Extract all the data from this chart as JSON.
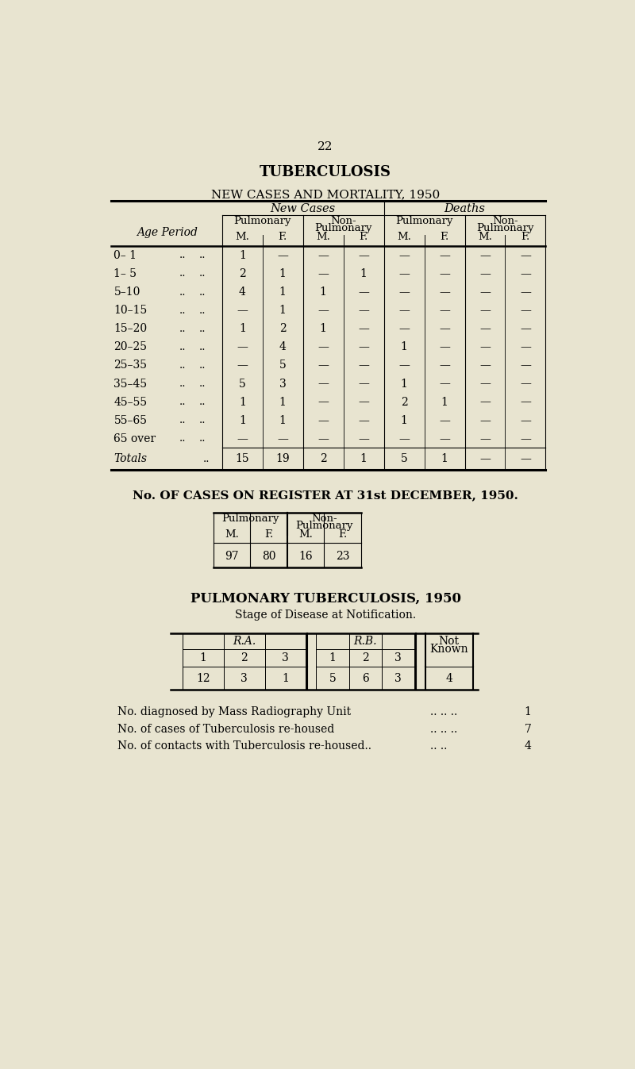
{
  "bg_color": "#e8e4d0",
  "page_number": "22",
  "title1": "TUBERCULOSIS",
  "title2": "NEW CASES AND MORTALITY, 1950",
  "table1": {
    "age_periods": [
      "0– 1",
      "1– 5",
      "5–10",
      "10–15",
      "15–20",
      "20–25",
      "25–35",
      "35–45",
      "45–55",
      "55–65",
      "65 over"
    ],
    "data": [
      [
        "1",
        "—",
        "—",
        "—",
        "—",
        "—",
        "—",
        "—"
      ],
      [
        "2",
        "1",
        "—",
        "1",
        "—",
        "—",
        "—",
        "—"
      ],
      [
        "4",
        "1",
        "1",
        "—",
        "—",
        "—",
        "—",
        "—"
      ],
      [
        "—",
        "1",
        "—",
        "—",
        "—",
        "—",
        "—",
        "—"
      ],
      [
        "1",
        "2",
        "1",
        "—",
        "—",
        "—",
        "—",
        "—"
      ],
      [
        "—",
        "4",
        "—",
        "—",
        "1",
        "—",
        "—",
        "—"
      ],
      [
        "—",
        "5",
        "—",
        "—",
        "—",
        "—",
        "—",
        "—"
      ],
      [
        "5",
        "3",
        "—",
        "—",
        "1",
        "—",
        "—",
        "—"
      ],
      [
        "1",
        "1",
        "—",
        "—",
        "2",
        "1",
        "—",
        "—"
      ],
      [
        "1",
        "1",
        "—",
        "—",
        "1",
        "—",
        "—",
        "—"
      ],
      [
        "—",
        "—",
        "—",
        "—",
        "—",
        "—",
        "—",
        "—"
      ]
    ],
    "totals": [
      "15",
      "19",
      "2",
      "1",
      "5",
      "1",
      "—",
      "—"
    ]
  },
  "title3": "No. OF CASES ON REGISTER AT 31st DECEMBER, 1950.",
  "table2_data": [
    "97",
    "80",
    "16",
    "23"
  ],
  "title4": "PULMONARY TUBERCULOSIS, 1950",
  "subtitle4": "Stage of Disease at Notification.",
  "table3_data": [
    "12",
    "3",
    "1",
    "5",
    "6",
    "3",
    "4"
  ],
  "footnote1_text": "No. diagnosed by Mass Radiography Unit",
  "footnote1_dots": ".. .. ..",
  "footnote1_val": "1",
  "footnote2_text": "No. of cases of Tuberculosis re-housed",
  "footnote2_dots": ".. .. ..",
  "footnote2_val": "7",
  "footnote3_text": "No. of contacts with Tuberculosis re-housed..",
  "footnote3_dots": ".. ..",
  "footnote3_val": "4"
}
